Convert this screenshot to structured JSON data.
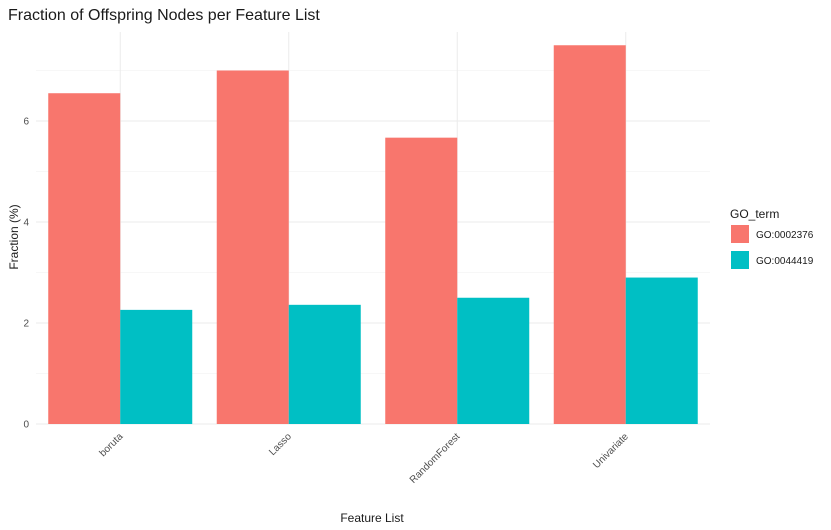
{
  "chart_data": {
    "type": "bar",
    "title": "Fraction of Offspring Nodes per Feature List",
    "xlabel": "Feature List",
    "ylabel": "Fraction (%)",
    "categories": [
      "boruta",
      "Lasso",
      "RandomForest",
      "Univariate"
    ],
    "series": [
      {
        "name": "GO:0002376",
        "color": "#F8766D",
        "values": [
          6.55,
          7.0,
          5.67,
          7.5
        ]
      },
      {
        "name": "GO:0044419",
        "color": "#00BFC4",
        "values": [
          2.26,
          2.36,
          2.5,
          2.9
        ]
      }
    ],
    "ylim": [
      0,
      7.5
    ],
    "yticks": [
      "0",
      "2",
      "4",
      "6"
    ],
    "legend": {
      "title": "GO_term",
      "position": "right"
    },
    "grid": true
  }
}
